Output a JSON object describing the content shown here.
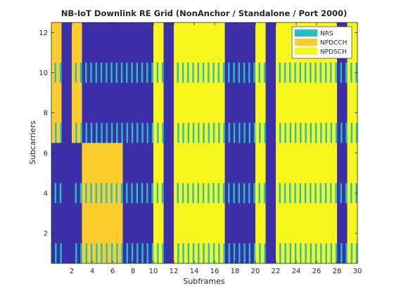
{
  "chart_data": {
    "type": "heatmap",
    "title": "NB-IoT Downlink RE Grid (NonAnchor / Standalone / Port 2000)",
    "xlabel": "Subframes",
    "ylabel": "Subcarriers",
    "xlim": [
      0,
      30
    ],
    "ylim": [
      0.5,
      12.5
    ],
    "xticks": [
      "2",
      "4",
      "6",
      "8",
      "10",
      "12",
      "14",
      "16",
      "18",
      "20",
      "22",
      "24",
      "26",
      "28",
      "30"
    ],
    "yticks": [
      "2",
      "4",
      "6",
      "8",
      "10",
      "12"
    ],
    "legend_position": "top-right",
    "background_color": "#3c2fa8",
    "legend": [
      {
        "name": "NRS",
        "color": "#21c1c2"
      },
      {
        "name": "NPDCCH",
        "color": "#fccd2c"
      },
      {
        "name": "NPDSCH",
        "color": "#f7f71d"
      }
    ],
    "regions": [
      {
        "channel": "NPDCCH",
        "x": [
          0,
          1
        ],
        "y": [
          6.5,
          12.5
        ]
      },
      {
        "channel": "NPDCCH",
        "x": [
          2,
          3
        ],
        "y": [
          6.5,
          12.5
        ]
      },
      {
        "channel": "NPDCCH",
        "x": [
          3,
          7
        ],
        "y": [
          0.5,
          6.5
        ]
      },
      {
        "channel": "NPDSCH",
        "x": [
          10,
          11
        ],
        "y": [
          0.5,
          12.5
        ]
      },
      {
        "channel": "NPDSCH",
        "x": [
          12,
          17
        ],
        "y": [
          0.5,
          12.5
        ]
      },
      {
        "channel": "NPDSCH",
        "x": [
          20,
          21
        ],
        "y": [
          0.5,
          12.5
        ]
      },
      {
        "channel": "NPDSCH",
        "x": [
          22,
          28
        ],
        "y": [
          0.5,
          12.5
        ]
      },
      {
        "channel": "NPDSCH",
        "x": [
          29,
          30
        ],
        "y": [
          0.5,
          12.5
        ]
      }
    ],
    "nrs_subcarriers": [
      1,
      4,
      7,
      10
    ],
    "nrs_symbols_per_subframe": [
      5,
      6,
      12,
      13
    ],
    "nrs_x_offsets": [
      0.0,
      0.5
    ],
    "nrs_excluded_subframes": [
      1,
      11,
      21
    ],
    "symbols_per_subframe": 14
  }
}
